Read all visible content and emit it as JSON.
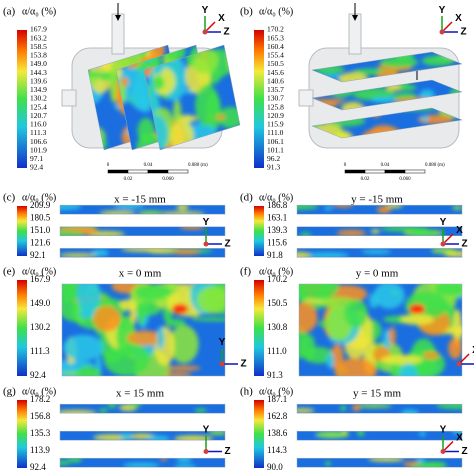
{
  "panels": [
    {
      "label": "(a)",
      "colorbar_title": "α/α₀ (%)",
      "colorbar_ticks": [
        "167.9",
        "163.2",
        "158.5",
        "153.8",
        "149.0",
        "144.3",
        "139.6",
        "134.9",
        "130.2",
        "125.4",
        "120.7",
        "116.0",
        "111.3",
        "106.6",
        "101.9",
        "97.1",
        "92.4"
      ],
      "axes": [
        "Y",
        "X",
        "Z"
      ],
      "scale_bar": [
        "0",
        "0.04",
        "0.080 (m)",
        "0.02",
        "0.060"
      ]
    },
    {
      "label": "(b)",
      "colorbar_title": "α/α₀ (%)",
      "colorbar_ticks": [
        "170.2",
        "165.3",
        "160.4",
        "155.4",
        "150.5",
        "145.6",
        "140.6",
        "135.7",
        "130.7",
        "125.8",
        "120.9",
        "115.9",
        "111.0",
        "106.1",
        "101.1",
        "96.2",
        "91.3"
      ],
      "axes": [
        "Y",
        "X",
        "Z"
      ],
      "scale_bar": [
        "0",
        "0.04",
        "0.080 (m)",
        "0.02",
        "0.060"
      ]
    },
    {
      "label": "(c)",
      "colorbar_title": "α/α₀ (%)",
      "slice": "x = -15 mm",
      "colorbar_ticks": [
        "209.9",
        "180.5",
        "151.0",
        "121.6",
        "92.1"
      ],
      "axes": [
        "Y",
        "Z"
      ]
    },
    {
      "label": "(d)",
      "colorbar_title": "α/α₀ (%)",
      "slice": "y = -15 mm",
      "colorbar_ticks": [
        "186.8",
        "163.1",
        "139.3",
        "115.6",
        "91.8"
      ],
      "axes": [
        "X",
        "Y",
        "Z"
      ]
    },
    {
      "label": "(e)",
      "colorbar_title": "α/α₀ (%)",
      "slice": "x = 0 mm",
      "colorbar_ticks": [
        "167.9",
        "149.0",
        "130.2",
        "111.3",
        "92.4"
      ],
      "axes": [
        "Y",
        "Z"
      ]
    },
    {
      "label": "(f)",
      "colorbar_title": "α/α₀ (%)",
      "slice": "y = 0 mm",
      "colorbar_ticks": [
        "170.2",
        "150.5",
        "130.8",
        "111.0",
        "91.3"
      ],
      "axes": [
        "X",
        "Z"
      ]
    },
    {
      "label": "(g)",
      "colorbar_title": "α/α₀ (%)",
      "slice": "x = 15 mm",
      "colorbar_ticks": [
        "178.2",
        "156.8",
        "135.3",
        "113.9",
        "92.4"
      ],
      "axes": [
        "Y",
        "Z"
      ]
    },
    {
      "label": "(h)",
      "colorbar_title": "α/α₀ (%)",
      "slice": "y = 15 mm",
      "colorbar_ticks": [
        "187.1",
        "162.8",
        "138.6",
        "114.3",
        "90.0"
      ],
      "axes": [
        "X",
        "Y",
        "Z"
      ]
    }
  ]
}
